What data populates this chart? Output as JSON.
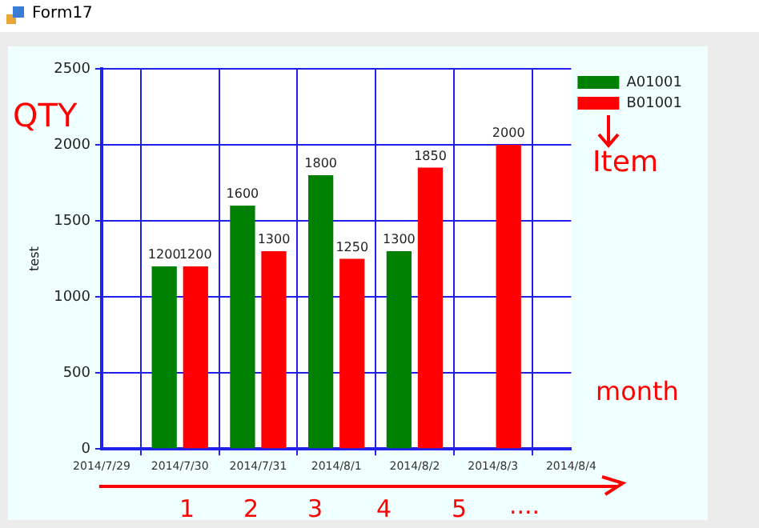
{
  "chart_data": {
    "type": "bar",
    "title": "Form17",
    "ylabel": "test",
    "categories": [
      "2014/7/29",
      "2014/7/30",
      "2014/7/31",
      "2014/8/1",
      "2014/8/2",
      "2014/8/3",
      "2014/8/4"
    ],
    "series": [
      {
        "name": "A01001",
        "color": "#008000",
        "values": [
          null,
          1200,
          1600,
          1800,
          1300,
          null,
          null
        ]
      },
      {
        "name": "B01001",
        "color": "#ff0000",
        "values": [
          null,
          1200,
          1300,
          1250,
          1850,
          2000,
          null
        ]
      }
    ],
    "ylim": [
      0,
      2500
    ],
    "yticks": [
      0,
      500,
      1000,
      1500,
      2000,
      2500
    ],
    "grid": true,
    "legend": "top right",
    "data_labels": true,
    "annotations": [
      "QTY",
      "Item",
      "month",
      "1",
      "2",
      "3",
      "4",
      "5",
      "...."
    ]
  }
}
